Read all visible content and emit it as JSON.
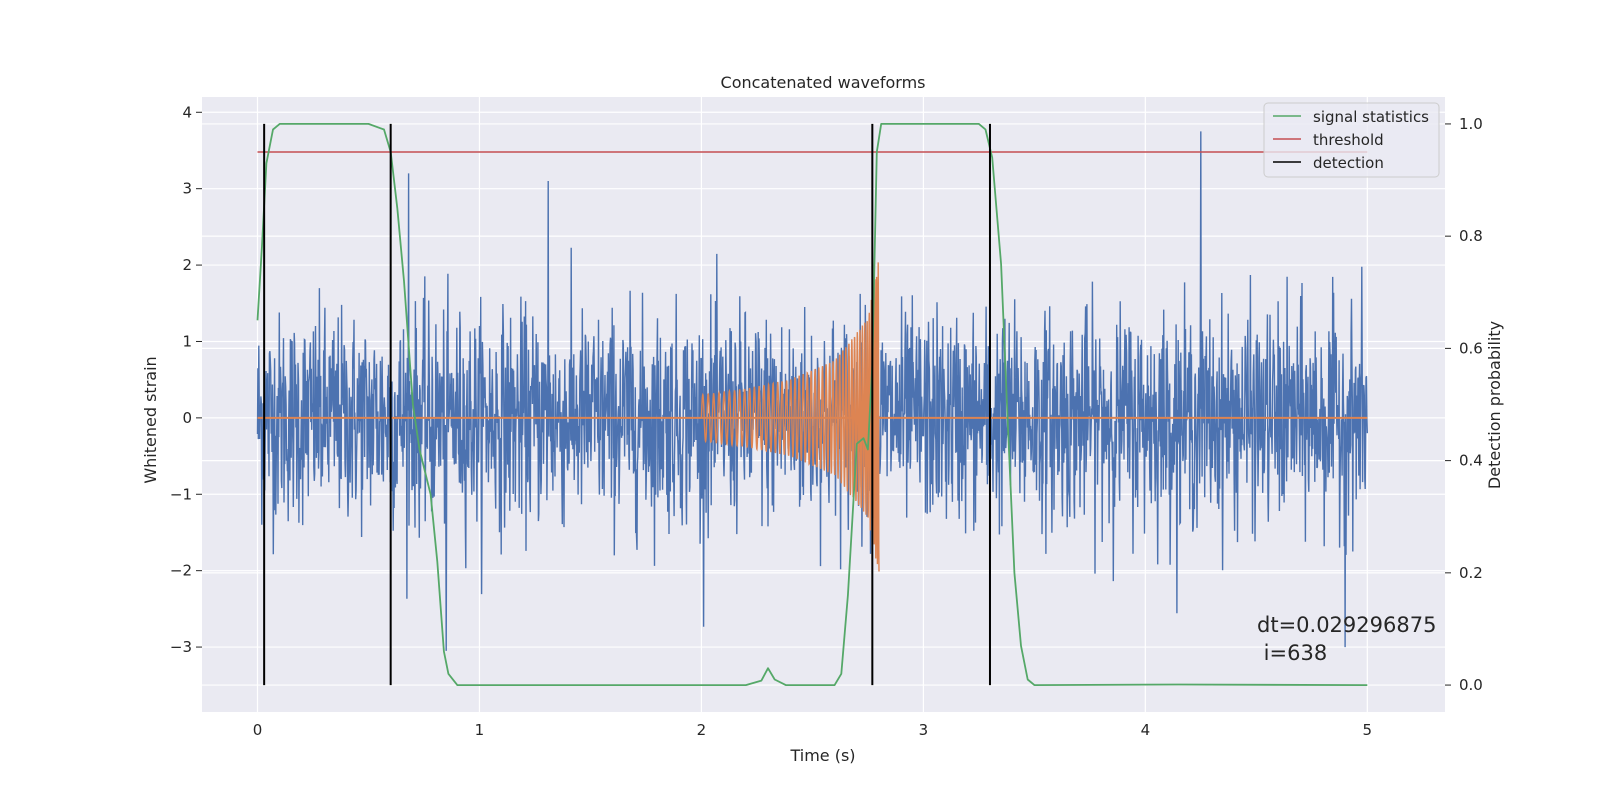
{
  "chart_data": {
    "type": "line",
    "title": "Concatenated waveforms",
    "xlabel": "Time (s)",
    "ylabel": "Whitened strain",
    "y2label": "Detection probability",
    "xlim": [
      -0.25,
      5.35
    ],
    "ylim": [
      -3.85,
      4.2
    ],
    "y2lim": [
      -0.048,
      1.048
    ],
    "xticks": [
      0,
      1,
      2,
      3,
      4,
      5
    ],
    "xtick_labels": [
      "0",
      "1",
      "2",
      "3",
      "4",
      "5"
    ],
    "yticks": [
      -3,
      -2,
      -1,
      0,
      1,
      2,
      3,
      4
    ],
    "ytick_labels": [
      "−3",
      "−2",
      "−1",
      "0",
      "1",
      "2",
      "3",
      "4"
    ],
    "y2ticks": [
      0.0,
      0.2,
      0.4,
      0.6,
      0.8,
      1.0
    ],
    "y2tick_labels": [
      "0.0",
      "0.2",
      "0.4",
      "0.6",
      "0.8",
      "1.0"
    ],
    "grid": true,
    "legend_position": "top-right",
    "colors": {
      "background": "#eaeaf2",
      "strain": "#4c72b0",
      "injection": "#dd8452",
      "signal_statistics": "#55a868",
      "threshold": "#c44e52",
      "detection": "#000000"
    },
    "series": [
      {
        "name": "",
        "axis": "left",
        "kind": "noise-strain",
        "t_range": [
          0,
          5
        ],
        "approx_range": [
          -3.05,
          3.75
        ],
        "notable_peaks": [
          [
            4.25,
            3.75
          ],
          [
            1.31,
            3.1
          ],
          [
            0.68,
            3.2
          ],
          [
            0.85,
            -3.4
          ],
          [
            4.9,
            -3.0
          ]
        ]
      },
      {
        "name": "",
        "axis": "left",
        "kind": "injected-chirp",
        "t_range": [
          2.0,
          2.8
        ],
        "envelope": [
          [
            2.0,
            0.3
          ],
          [
            2.2,
            0.38
          ],
          [
            2.4,
            0.5
          ],
          [
            2.6,
            0.75
          ],
          [
            2.75,
            1.3
          ],
          [
            2.8,
            2.1
          ]
        ]
      },
      {
        "name": "signal statistics",
        "axis": "right",
        "points": [
          [
            0.0,
            0.65
          ],
          [
            0.02,
            0.78
          ],
          [
            0.04,
            0.93
          ],
          [
            0.07,
            0.99
          ],
          [
            0.1,
            1.0
          ],
          [
            0.5,
            1.0
          ],
          [
            0.57,
            0.99
          ],
          [
            0.6,
            0.95
          ],
          [
            0.63,
            0.85
          ],
          [
            0.66,
            0.72
          ],
          [
            0.7,
            0.5
          ],
          [
            0.73,
            0.42
          ],
          [
            0.78,
            0.34
          ],
          [
            0.81,
            0.22
          ],
          [
            0.84,
            0.06
          ],
          [
            0.86,
            0.02
          ],
          [
            0.9,
            0.0
          ],
          [
            2.2,
            0.0
          ],
          [
            2.27,
            0.008
          ],
          [
            2.3,
            0.03
          ],
          [
            2.33,
            0.01
          ],
          [
            2.38,
            0.0
          ],
          [
            2.6,
            0.0
          ],
          [
            2.63,
            0.02
          ],
          [
            2.66,
            0.16
          ],
          [
            2.7,
            0.43
          ],
          [
            2.73,
            0.44
          ],
          [
            2.75,
            0.42
          ],
          [
            2.77,
            0.57
          ],
          [
            2.79,
            0.95
          ],
          [
            2.81,
            1.0
          ],
          [
            3.25,
            1.0
          ],
          [
            3.28,
            0.99
          ],
          [
            3.31,
            0.94
          ],
          [
            3.35,
            0.75
          ],
          [
            3.38,
            0.47
          ],
          [
            3.41,
            0.2
          ],
          [
            3.44,
            0.07
          ],
          [
            3.47,
            0.01
          ],
          [
            3.5,
            0.0
          ],
          [
            4.15,
            0.001
          ],
          [
            5.0,
            0.0
          ]
        ]
      },
      {
        "name": "threshold",
        "axis": "right",
        "points": [
          [
            0.0,
            0.95
          ],
          [
            5.0,
            0.95
          ]
        ]
      },
      {
        "name": "detection",
        "axis": "right",
        "x": [
          0.03,
          0.6,
          2.77,
          3.3
        ],
        "y_range": [
          0.0,
          1.0
        ]
      }
    ],
    "annotation": {
      "line1": "dt=0.029296875",
      "line2": " i=638"
    }
  }
}
